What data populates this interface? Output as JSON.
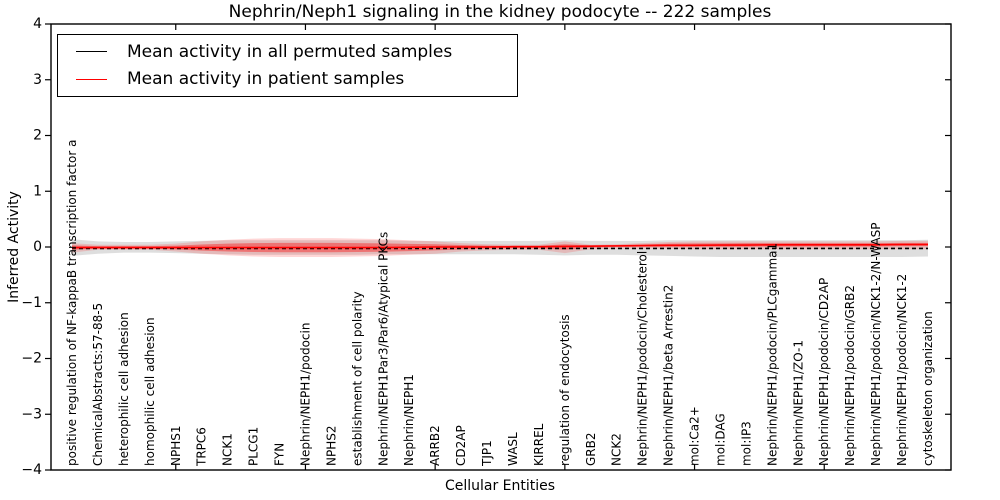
{
  "figure": {
    "title": "Nephrin/Neph1 signaling in the kidney podocyte -- 222 samples",
    "xlabel": "Cellular Entities",
    "ylabel": "Inferred Activity"
  },
  "legend": {
    "items": [
      {
        "label": "Mean activity in all permuted samples",
        "color": "#000000"
      },
      {
        "label": "Mean activity in patient samples",
        "color": "#ff0000"
      }
    ]
  },
  "chart_data": {
    "type": "line",
    "title": "Nephrin/Neph1 signaling in the kidney podocyte -- 222 samples",
    "xlabel": "Cellular Entities",
    "ylabel": "Inferred Activity",
    "ylim": [
      -4,
      4
    ],
    "ytick_labels": [
      "4",
      "3",
      "2",
      "1",
      "0",
      "−1",
      "−2",
      "−3",
      "−4"
    ],
    "grid": false,
    "legend_position": "upper left",
    "categories": [
      "positive regulation of NF-kappaB transcription factor a",
      "ChemicalAbstracts:57-88-5",
      "heterophilic cell adhesion",
      "homophilic cell adhesion",
      "NPHS1",
      "TRPC6",
      "NCK1",
      "PLCG1",
      "FYN",
      "Nephrin/NEPH1/podocin",
      "NPHS2",
      "establishment of cell polarity",
      "Nephrin/NEPH1Par3/Par6/Atypical PKCs",
      "Nephrin/NEPH1",
      "ARRB2",
      "CD2AP",
      "TJP1",
      "WASL",
      "KIRREL",
      "regulation of endocytosis",
      "GRB2",
      "NCK2",
      "Nephrin/NEPH1/podocin/Cholesterol",
      "Nephrin/NEPH1/beta Arrestin2",
      "mol:Ca2+",
      "mol:DAG",
      "mol:IP3",
      "Nephrin/NEPH1/podocin/PLCgamma1",
      "Nephrin/NEPH1/ZO-1",
      "Nephrin/NEPH1/podocin/CD2AP",
      "Nephrin/NEPH1/podocin/GRB2",
      "Nephrin/NEPH1/podocin/NCK1-2/N-WASP",
      "Nephrin/NEPH1/podocin/NCK1-2",
      "cytoskeleton organization"
    ],
    "series": [
      {
        "name": "Mean activity in all permuted samples",
        "color": "#000000",
        "style": "dashed",
        "values": [
          -0.025,
          -0.025,
          -0.025,
          -0.025,
          -0.025,
          -0.025,
          -0.025,
          -0.025,
          -0.025,
          -0.025,
          -0.025,
          -0.025,
          -0.025,
          -0.025,
          -0.025,
          -0.025,
          -0.025,
          -0.025,
          -0.025,
          -0.025,
          -0.025,
          -0.025,
          -0.025,
          -0.025,
          -0.025,
          -0.025,
          -0.025,
          -0.025,
          -0.025,
          -0.025,
          -0.025,
          -0.025,
          -0.025,
          -0.025
        ]
      },
      {
        "name": "Mean activity in patient samples",
        "color": "#ff0000",
        "style": "solid",
        "values": [
          -0.01,
          -0.01,
          -0.01,
          -0.01,
          -0.01,
          -0.01,
          -0.01,
          -0.01,
          -0.01,
          -0.01,
          -0.01,
          -0.01,
          -0.01,
          -0.005,
          0,
          0,
          0,
          0.005,
          0.005,
          0.01,
          0.015,
          0.02,
          0.025,
          0.03,
          0.03,
          0.035,
          0.035,
          0.04,
          0.04,
          0.04,
          0.04,
          0.04,
          0.045,
          0.045
        ]
      }
    ],
    "bands": [
      {
        "name": "permuted-envelope",
        "color": "#bdbdbd",
        "opacity": 0.5,
        "upper": [
          0.14,
          0.1,
          0.09,
          0.09,
          0.1,
          0.11,
          0.12,
          0.12,
          0.12,
          0.12,
          0.12,
          0.12,
          0.12,
          0.11,
          0.11,
          0.11,
          0.11,
          0.11,
          0.11,
          0.12,
          0.11,
          0.11,
          0.11,
          0.12,
          0.12,
          0.12,
          0.12,
          0.12,
          0.12,
          0.12,
          0.12,
          0.12,
          0.12,
          0.13
        ],
        "lower": [
          -0.16,
          -0.12,
          -0.1,
          -0.1,
          -0.11,
          -0.12,
          -0.13,
          -0.14,
          -0.14,
          -0.14,
          -0.14,
          -0.14,
          -0.13,
          -0.13,
          -0.13,
          -0.13,
          -0.13,
          -0.13,
          -0.14,
          -0.15,
          -0.14,
          -0.14,
          -0.15,
          -0.16,
          -0.17,
          -0.18,
          -0.18,
          -0.18,
          -0.18,
          -0.18,
          -0.18,
          -0.18,
          -0.18,
          -0.17
        ]
      },
      {
        "name": "patient-outer",
        "color": "#ff0000",
        "opacity": 0.16,
        "upper": [
          0.07,
          0.04,
          0.04,
          0.04,
          0.06,
          0.1,
          0.13,
          0.15,
          0.16,
          0.16,
          0.16,
          0.15,
          0.14,
          0.12,
          0.1,
          0.07,
          0.05,
          0.04,
          0.04,
          0.1,
          0.04,
          0.05,
          0.07,
          0.09,
          0.1,
          0.1,
          0.1,
          0.1,
          0.1,
          0.1,
          0.1,
          0.1,
          0.11,
          0.11
        ],
        "lower": [
          -0.1,
          -0.05,
          -0.05,
          -0.05,
          -0.08,
          -0.12,
          -0.15,
          -0.17,
          -0.18,
          -0.18,
          -0.18,
          -0.17,
          -0.16,
          -0.14,
          -0.12,
          -0.08,
          -0.06,
          -0.05,
          -0.05,
          -0.11,
          -0.04,
          -0.03,
          -0.03,
          -0.03,
          -0.04,
          -0.04,
          -0.04,
          -0.04,
          -0.04,
          -0.04,
          -0.04,
          -0.04,
          -0.04,
          -0.04
        ]
      },
      {
        "name": "patient-inner",
        "color": "#ff0000",
        "opacity": 0.38,
        "upper": [
          0.03,
          0.015,
          0.015,
          0.015,
          0.025,
          0.045,
          0.06,
          0.07,
          0.075,
          0.075,
          0.075,
          0.07,
          0.065,
          0.055,
          0.05,
          0.035,
          0.025,
          0.02,
          0.02,
          0.05,
          0.03,
          0.035,
          0.045,
          0.06,
          0.065,
          0.065,
          0.07,
          0.07,
          0.07,
          0.07,
          0.07,
          0.07,
          0.075,
          0.075
        ],
        "lower": [
          -0.05,
          -0.03,
          -0.03,
          -0.03,
          -0.045,
          -0.065,
          -0.08,
          -0.09,
          -0.095,
          -0.095,
          -0.095,
          -0.09,
          -0.085,
          -0.075,
          -0.06,
          -0.045,
          -0.03,
          -0.025,
          -0.025,
          -0.05,
          -0.01,
          0,
          0.005,
          0.005,
          0.005,
          0.005,
          0.005,
          0.01,
          0.01,
          0.01,
          0.01,
          0.01,
          0.015,
          0.015
        ]
      }
    ]
  }
}
